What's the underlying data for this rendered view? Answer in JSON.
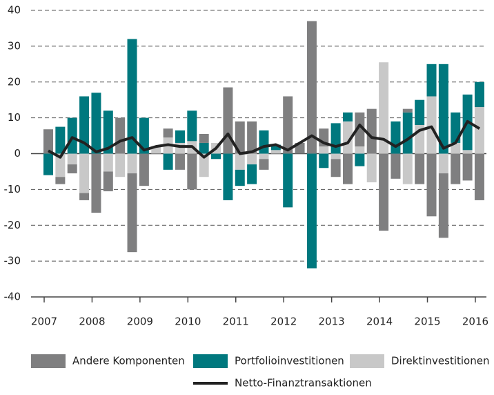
{
  "chart_data": {
    "type": "bar",
    "stacked": true,
    "categories": [
      "2007",
      null,
      null,
      null,
      "2008",
      null,
      null,
      null,
      "2009",
      null,
      null,
      null,
      "2010",
      null,
      null,
      null,
      "2011",
      null,
      null,
      null,
      "2012",
      null,
      null,
      null,
      "2013",
      null,
      null,
      null,
      "2014",
      null,
      null,
      null,
      "2015",
      null,
      null,
      null,
      "2016"
    ],
    "series": [
      {
        "name": "Andere Komponenten",
        "color": "#7f7f80",
        "values": [
          6.8,
          -2,
          -2.5,
          -2,
          -16.5,
          -5.5,
          10,
          -22,
          -9,
          0,
          2.5,
          -4.5,
          -10,
          2.5,
          0,
          18.5,
          9,
          9,
          -3,
          0,
          16,
          3,
          37,
          5,
          -5,
          -8.5,
          9.5,
          12.5,
          -21.5,
          -7,
          1,
          -8.5,
          -17.5,
          -18,
          -8.5,
          -7.5,
          -13
        ]
      },
      {
        "name": "Portfolioinvestitionen",
        "color": "#00787e",
        "values": [
          -6,
          7.5,
          10,
          16,
          17,
          12,
          0,
          32,
          10,
          0,
          -4.5,
          3.5,
          8.5,
          3,
          -1.5,
          -13,
          -4.5,
          -5.5,
          6.5,
          1.5,
          -15,
          0,
          -32,
          -4,
          8.5,
          2.5,
          -3.5,
          0,
          0,
          9,
          11.5,
          7,
          9,
          25,
          8.5,
          15.5,
          7
        ]
      },
      {
        "name": "Direktinvestitionen",
        "color": "#c8c8c8",
        "values": [
          0,
          -6.5,
          -3,
          -11,
          0,
          -5,
          -6.5,
          -5.5,
          0,
          2,
          4.5,
          3,
          3.5,
          -6.5,
          3,
          0,
          -4.5,
          -3,
          -1.5,
          1,
          0,
          0,
          0,
          2,
          -1.5,
          9,
          2,
          -8,
          25.5,
          0,
          -8.5,
          8,
          16,
          -5.5,
          3,
          1,
          13
        ]
      },
      {
        "name": "Netto-Finanztransaktionen",
        "color": "#222222",
        "type": "line",
        "values": [
          0.8,
          -1,
          4.5,
          3,
          0.5,
          1.5,
          3.5,
          4.5,
          1,
          2,
          2.5,
          2,
          2,
          -1,
          1.5,
          5.5,
          0,
          0.5,
          2,
          2.5,
          1,
          3,
          5,
          3,
          2,
          3,
          8,
          4.5,
          4,
          2,
          4,
          6.5,
          7.5,
          1.5,
          3,
          9,
          7
        ]
      }
    ],
    "ylim": [
      -40,
      40
    ],
    "yticks": [
      -40,
      -30,
      -20,
      -10,
      0,
      10,
      20,
      30,
      40
    ],
    "grid": true
  }
}
